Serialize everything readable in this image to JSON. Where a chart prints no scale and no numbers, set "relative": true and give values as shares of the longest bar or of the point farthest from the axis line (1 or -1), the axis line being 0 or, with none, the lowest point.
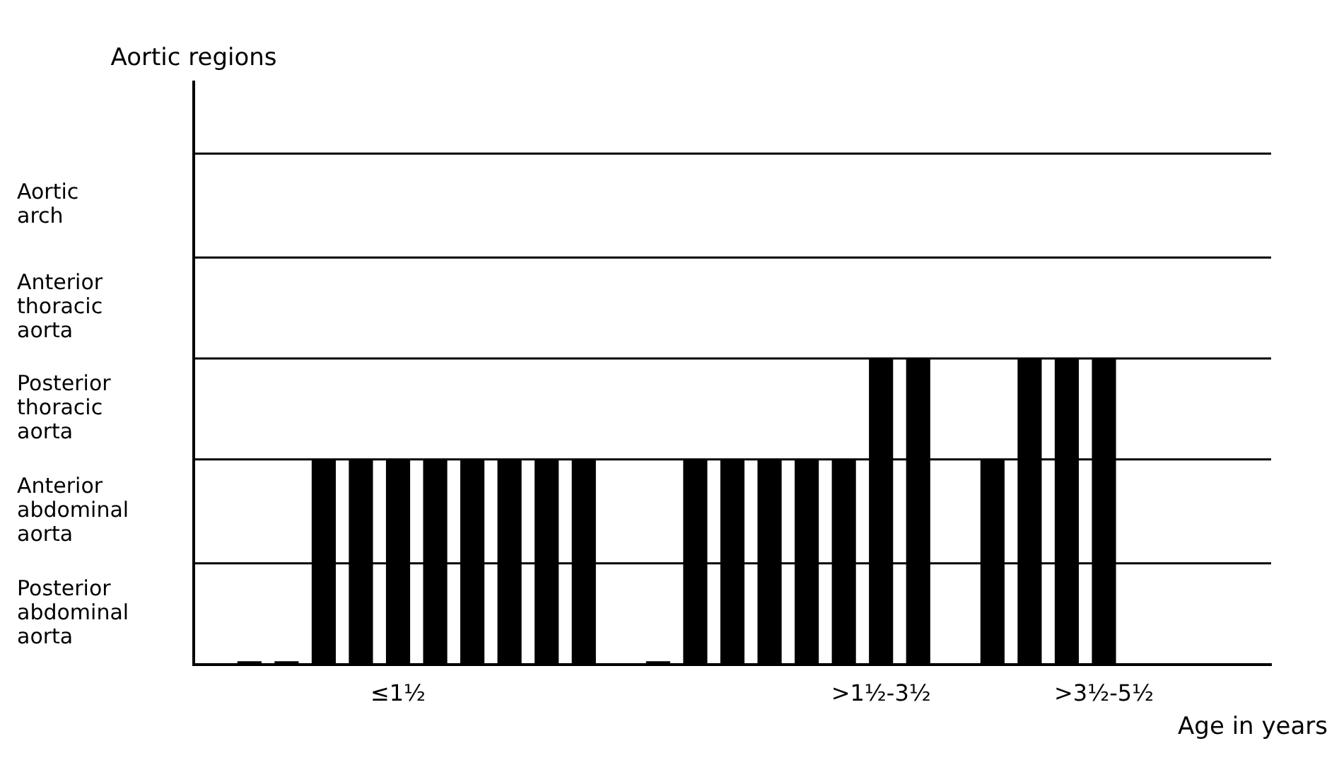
{
  "chart_data": {
    "type": "bar",
    "xlabel": "Age in years",
    "relative": true,
    "categories": [
      null,
      null,
      null,
      null,
      null,
      "≤1½",
      null,
      null,
      null,
      null,
      null,
      null,
      null,
      null,
      null,
      null,
      null,
      null,
      ">1½-3½",
      null,
      null,
      null,
      null,
      null,
      ">3½-5½",
      null,
      null,
      null,
      null
    ],
    "values": [
      null,
      0.01,
      0.01,
      0.67,
      0.67,
      0.67,
      0.67,
      0.67,
      0.67,
      0.67,
      0.67,
      null,
      0.01,
      0.67,
      0.67,
      0.67,
      0.67,
      0.67,
      1,
      1,
      null,
      0.67,
      1,
      1,
      1,
      null,
      null,
      null,
      null
    ],
    "color": "#000000",
    "annotations": [
      "Aortic regions",
      "Aortic arch",
      "Anterior thoracic aorta",
      "Posterior thoracic aorta",
      "Anterior abdominal aorta",
      "Posterior abdominal aorta"
    ],
    "ref_lines": [
      {
        "axis": "y",
        "value": 0.33
      },
      {
        "axis": "y",
        "value": 0.67
      },
      {
        "axis": "y",
        "value": 1
      },
      {
        "axis": "y",
        "value": 1.33
      },
      {
        "axis": "y",
        "value": 1.67
      }
    ],
    "grid": false,
    "legend": false
  }
}
